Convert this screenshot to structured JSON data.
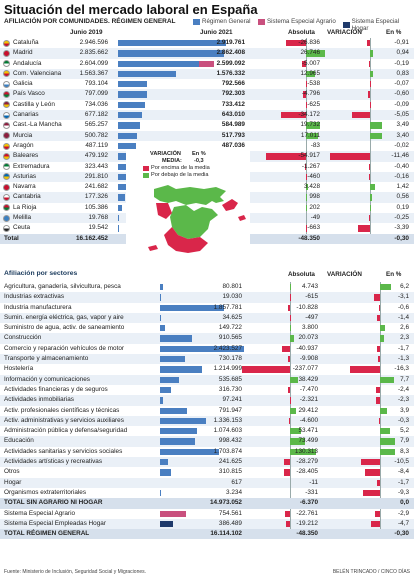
{
  "title": "Situación del mercado laboral en España",
  "subtitle": "AFILIACIÓN POR COMUNIDADES. RÉGIMEN GENERAL",
  "legend": [
    {
      "label": "Régimen General",
      "color": "#4a7fc1"
    },
    {
      "label": "Sistema Especial Agrario",
      "color": "#c9507e"
    },
    {
      "label": "Sistema Especial Hogar",
      "color": "#1f3a6b"
    }
  ],
  "colors": {
    "positive": "#5bb84a",
    "negative": "#d9264a",
    "general": "#4a7fc1",
    "agrario": "#c9507e",
    "hogar": "#1f3a6b",
    "highlight": "#1a3a5c"
  },
  "headers": {
    "jun2019": "Junio 2019",
    "jun2021": "Junio 2021",
    "absoluta": "Absoluta",
    "variacion": "VARIACIÓN",
    "pct": "En %"
  },
  "regions": [
    {
      "name": "Cataluña",
      "flag": [
        "#f2c200",
        "#c8102e"
      ],
      "v2019": "2.946.596",
      "v2021": "2.919.761",
      "gen": 2919761,
      "agr": 0,
      "hog": 0,
      "abs": "-26.836",
      "absn": -26836,
      "pct": "-0,91"
    },
    {
      "name": "Madrid",
      "flag": [
        "#c8102e",
        "#c8102e"
      ],
      "v2019": "2.835.662",
      "v2021": "2.862.408",
      "gen": 2862408,
      "agr": 0,
      "hog": 0,
      "abs": "26.746",
      "absn": 26746,
      "pct": "0,94"
    },
    {
      "name": "Andalucía",
      "flag": [
        "#007a33",
        "#ffffff"
      ],
      "v2019": "2.604.099",
      "v2021": "2.599.092",
      "gen": 2200000,
      "agr": 399092,
      "hog": 0,
      "abs": "-5.007",
      "absn": -5007,
      "pct": "-0,19"
    },
    {
      "name": "Com. Valenciana",
      "flag": [
        "#f2c200",
        "#c8102e"
      ],
      "v2019": "1.563.367",
      "v2021": "1.576.332",
      "gen": 1576332,
      "agr": 0,
      "hog": 0,
      "abs": "12.965",
      "absn": 12965,
      "pct": "0,83"
    },
    {
      "name": "Galicia",
      "flag": [
        "#ffffff",
        "#3a7fc1"
      ],
      "v2019": "793.104",
      "v2021": "792.566",
      "gen": 792566,
      "agr": 0,
      "hog": 0,
      "abs": "-538",
      "absn": -538,
      "pct": "-0,07"
    },
    {
      "name": "País Vasco",
      "flag": [
        "#c8102e",
        "#007a33"
      ],
      "v2019": "797.099",
      "v2021": "792.303",
      "gen": 792303,
      "agr": 0,
      "hog": 0,
      "abs": "-4.796",
      "absn": -4796,
      "pct": "-0,60"
    },
    {
      "name": "Castilla y León",
      "flag": [
        "#8b1e3f",
        "#f2c200"
      ],
      "v2019": "734.036",
      "v2021": "733.412",
      "gen": 733412,
      "agr": 0,
      "hog": 0,
      "abs": "-625",
      "absn": -625,
      "pct": "-0,09"
    },
    {
      "name": "Canarias",
      "flag": [
        "#ffffff",
        "#0066b3"
      ],
      "v2019": "677.182",
      "v2021": "643.010",
      "gen": 643010,
      "agr": 0,
      "hog": 0,
      "abs": "-34.172",
      "absn": -34172,
      "pct": "-5,05"
    },
    {
      "name": "Cast.-La Mancha",
      "flag": [
        "#8b1e3f",
        "#ffffff"
      ],
      "v2019": "565.257",
      "v2021": "584.989",
      "gen": 584989,
      "agr": 0,
      "hog": 0,
      "abs": "19.732",
      "absn": 19732,
      "pct": "3,49"
    },
    {
      "name": "Murcia",
      "flag": [
        "#8b1e3f",
        "#8b1e3f"
      ],
      "v2019": "500.782",
      "v2021": "517.793",
      "gen": 517793,
      "agr": 0,
      "hog": 0,
      "abs": "17.011",
      "absn": 17011,
      "pct": "3,40"
    },
    {
      "name": "Aragón",
      "flag": [
        "#f2c200",
        "#c8102e"
      ],
      "v2019": "487.119",
      "v2021": "487.036",
      "gen": 487036,
      "agr": 0,
      "hog": 0,
      "abs": "-83",
      "absn": -83,
      "pct": "-0,02"
    },
    {
      "name": "Baleares",
      "flag": [
        "#c8102e",
        "#f2c200"
      ],
      "v2019": "479.192",
      "v2021": "424.275",
      "gen": 424275,
      "agr": 0,
      "hog": 0,
      "abs": "-54.917",
      "absn": -54917,
      "pct": "-11,46"
    },
    {
      "name": "Extremadura",
      "flag": [
        "#007a33",
        "#ffffff"
      ],
      "v2019": "323.443",
      "v2021": "322.176",
      "gen": 322176,
      "agr": 0,
      "hog": 0,
      "abs": "-1.267",
      "absn": -1267,
      "pct": "-0,40"
    },
    {
      "name": "Asturias",
      "flag": [
        "#0066b3",
        "#f2c200"
      ],
      "v2019": "291.810",
      "v2021": "291.350",
      "gen": 291350,
      "agr": 0,
      "hog": 0,
      "abs": "-460",
      "absn": -460,
      "pct": "-0,16"
    },
    {
      "name": "Navarra",
      "flag": [
        "#c8102e",
        "#c8102e"
      ],
      "v2019": "241.682",
      "v2021": "245.110",
      "gen": 245110,
      "agr": 0,
      "hog": 0,
      "abs": "3.428",
      "absn": 3428,
      "pct": "1,42"
    },
    {
      "name": "Cantabria",
      "flag": [
        "#ffffff",
        "#c8102e"
      ],
      "v2019": "177.326",
      "v2021": "178.324",
      "gen": 178324,
      "agr": 0,
      "hog": 0,
      "abs": "998",
      "absn": 998,
      "pct": "0,56"
    },
    {
      "name": "La Rioja",
      "flag": [
        "#c8102e",
        "#007a33"
      ],
      "v2019": "105.386",
      "v2021": "105.588",
      "gen": 105588,
      "agr": 0,
      "hog": 0,
      "abs": "202",
      "absn": 202,
      "pct": "0,19"
    },
    {
      "name": "Melilla",
      "flag": [
        "#3a7fc1",
        "#3a7fc1"
      ],
      "v2019": "19.768",
      "v2021": "19.719",
      "gen": 19719,
      "agr": 0,
      "hog": 0,
      "abs": "-49",
      "absn": -49,
      "pct": "-0,25"
    },
    {
      "name": "Ceuta",
      "flag": [
        "#ffffff",
        "#222222"
      ],
      "v2019": "19.542",
      "v2021": "18.879",
      "gen": 18879,
      "agr": 0,
      "hog": 0,
      "abs": "-663",
      "absn": -663,
      "pct": "-3,39"
    }
  ],
  "region_total": {
    "name": "Total",
    "v2019": "16.162.452",
    "v2021": "16.114.102",
    "abs": "-48.350",
    "pct": "-0,30"
  },
  "map_legend": {
    "title": "VARIACIÓN",
    "pct_label": "En %",
    "media_label": "MEDIA:",
    "media_value": "-0,3",
    "above": "Por encima de la media",
    "below": "Por debajo de la media"
  },
  "sectors_header": "Afiliación  por sectores",
  "sectors": [
    {
      "name": "Agricultura, ganadería, silvicultura, pesca",
      "v2021": "80.801",
      "n": 80801,
      "abs": "4.743",
      "absn": 4743,
      "pct": "6,2"
    },
    {
      "name": "Industrias extractivas",
      "v2021": "19.030",
      "n": 19030,
      "abs": "-615",
      "absn": -615,
      "pct": "-3,1"
    },
    {
      "name": "Industria manufacturera",
      "v2021": "1.857.781",
      "n": 1857781,
      "abs": "-10.828",
      "absn": -10828,
      "pct": "-0,6"
    },
    {
      "name": "Sumin. energía eléctrica, gas, vapor y aire",
      "v2021": "34.625",
      "n": 34625,
      "abs": "-497",
      "absn": -497,
      "pct": "-1,4"
    },
    {
      "name": "Suministro de agua, activ. de saneamiento",
      "v2021": "149.722",
      "n": 149722,
      "abs": "3.800",
      "absn": 3800,
      "pct": "2,6"
    },
    {
      "name": "Construcción",
      "v2021": "910.565",
      "n": 910565,
      "abs": "20.073",
      "absn": 20073,
      "pct": "2,3"
    },
    {
      "name": "Comercio y reparación vehículos de motor",
      "v2021": "2.423.527",
      "n": 2423527,
      "abs": "-40.937",
      "absn": -40937,
      "pct": "-1,7"
    },
    {
      "name": "Transporte y almacenamiento",
      "v2021": "730.178",
      "n": 730178,
      "abs": "-9.908",
      "absn": -9908,
      "pct": "-1,3"
    },
    {
      "name": "Hostelería",
      "v2021": "1.214.999",
      "n": 1214999,
      "abs": "-237.077",
      "absn": -237077,
      "pct": "-16,3"
    },
    {
      "name": "Información y comunicaciones",
      "v2021": "535.685",
      "n": 535685,
      "abs": "38.429",
      "absn": 38429,
      "pct": "7,7"
    },
    {
      "name": "Actividades financieras y de seguros",
      "v2021": "316.730",
      "n": 316730,
      "abs": "-7.470",
      "absn": -7470,
      "pct": "-2,4"
    },
    {
      "name": "Actividades inmobiliarias",
      "v2021": "97.241",
      "n": 97241,
      "abs": "-2.321",
      "absn": -2321,
      "pct": "-2,3"
    },
    {
      "name": "Activ. profesionales científicas y técnicas",
      "v2021": "791.947",
      "n": 791947,
      "abs": "29.412",
      "absn": 29412,
      "pct": "3,9"
    },
    {
      "name": "Activ. administrativas y servicios auxiliares",
      "v2021": "1.336.153",
      "n": 1336153,
      "abs": "-4.600",
      "absn": -4600,
      "pct": "-0,3"
    },
    {
      "name": "Administración pública y defensa/seguridad",
      "v2021": "1.074.603",
      "n": 1074603,
      "abs": "53.471",
      "absn": 53471,
      "pct": "5,2"
    },
    {
      "name": "Educación",
      "v2021": "998.432",
      "n": 998432,
      "abs": "73.499",
      "absn": 73499,
      "pct": "7,9"
    },
    {
      "name": "Actividades sanitarias y servicios sociales",
      "v2021": "1.703.874",
      "n": 1703874,
      "abs": "130.313",
      "absn": 130313,
      "pct": "8,3"
    },
    {
      "name": "Actividades artísticas y recreativas",
      "v2021": "241.625",
      "n": 241625,
      "abs": "-28.279",
      "absn": -28279,
      "pct": "-10,5"
    },
    {
      "name": "Otros",
      "v2021": "310.815",
      "n": 310815,
      "abs": "-28.405",
      "absn": -28405,
      "pct": "-8,4"
    },
    {
      "name": "Hogar",
      "v2021": "617",
      "n": 617,
      "abs": "-11",
      "absn": -11,
      "pct": "-1,7"
    },
    {
      "name": "Organismos extraterritoriales",
      "v2021": "3.234",
      "n": 3234,
      "abs": "-331",
      "absn": -331,
      "pct": "-9,3"
    }
  ],
  "sector_total_sin": {
    "name": "TOTAL SIN AGRARIO NI HOGAR",
    "v2021": "14.973.052",
    "abs": "-6.370",
    "pct": "0,0"
  },
  "sector_extras": [
    {
      "name": "Sistema Especial Agrario",
      "v2021": "754.561",
      "n": 754561,
      "color": "#c9507e",
      "abs": "-22.761",
      "absn": -22761,
      "pct": "-2,9"
    },
    {
      "name": "Sistema Especial Empleadas Hogar",
      "v2021": "386.489",
      "n": 386489,
      "color": "#1f3a6b",
      "abs": "-19.212",
      "absn": -19212,
      "pct": "-4,7"
    }
  ],
  "sector_total": {
    "name": "TOTAL RÉGIMEN GENERAL",
    "v2021": "16.114.102",
    "abs": "-48.350",
    "pct": "-0,30"
  },
  "source": "Fuente: Ministerio de Inclusión, Seguridad Social y Migraciones.",
  "credit": "BELÉN TRINCADO / CINCO DÍAS",
  "chart_data": [
    {
      "type": "bar",
      "title": "AFILIACIÓN POR COMUNIDADES. RÉGIMEN GENERAL",
      "categories": [
        "Cataluña",
        "Madrid",
        "Andalucía",
        "Com. Valenciana",
        "Galicia",
        "País Vasco",
        "Castilla y León",
        "Canarias",
        "Cast.-La Mancha",
        "Murcia",
        "Aragón",
        "Baleares",
        "Extremadura",
        "Asturias",
        "Navarra",
        "Cantabria",
        "La Rioja",
        "Melilla",
        "Ceuta"
      ],
      "series": [
        {
          "name": "Junio 2019",
          "values": [
            2946596,
            2835662,
            2604099,
            1563367,
            793104,
            797099,
            734036,
            677182,
            565257,
            500782,
            487119,
            479192,
            323443,
            291810,
            241682,
            177326,
            105386,
            19768,
            19542
          ]
        },
        {
          "name": "Junio 2021",
          "values": [
            2919761,
            2862408,
            2599092,
            1576332,
            792566,
            792303,
            733412,
            643010,
            584989,
            517793,
            487036,
            424275,
            322176,
            291350,
            245110,
            178324,
            105588,
            19719,
            18879
          ]
        },
        {
          "name": "Absoluta",
          "values": [
            -26836,
            26746,
            -5007,
            12965,
            -538,
            -4796,
            -625,
            -34172,
            19732,
            17011,
            -83,
            -54917,
            -1267,
            -460,
            3428,
            998,
            202,
            -49,
            -663
          ]
        },
        {
          "name": "En %",
          "values": [
            -0.91,
            0.94,
            -0.19,
            0.83,
            -0.07,
            -0.6,
            -0.09,
            -5.05,
            3.49,
            3.4,
            -0.02,
            -11.46,
            -0.4,
            -0.16,
            1.42,
            0.56,
            0.19,
            -0.25,
            -3.39
          ]
        }
      ]
    },
    {
      "type": "bar",
      "title": "Afiliación por sectores",
      "categories": [
        "Agricultura, ganadería, silvicultura, pesca",
        "Industrias extractivas",
        "Industria manufacturera",
        "Sumin. energía eléctrica, gas, vapor y aire",
        "Suministro de agua, activ. de saneamiento",
        "Construcción",
        "Comercio y reparación vehículos de motor",
        "Transporte y almacenamiento",
        "Hostelería",
        "Información y comunicaciones",
        "Actividades financieras y de seguros",
        "Actividades inmobiliarias",
        "Activ. profesionales científicas y técnicas",
        "Activ. administrativas y servicios auxiliares",
        "Administración pública y defensa/seguridad",
        "Educación",
        "Actividades sanitarias y servicios sociales",
        "Actividades artísticas y recreativas",
        "Otros",
        "Hogar",
        "Organismos extraterritoriales"
      ],
      "series": [
        {
          "name": "Junio 2021",
          "values": [
            80801,
            19030,
            1857781,
            34625,
            149722,
            910565,
            2423527,
            730178,
            1214999,
            535685,
            316730,
            97241,
            791947,
            1336153,
            1074603,
            998432,
            1703874,
            241625,
            310815,
            617,
            3234
          ]
        },
        {
          "name": "Absoluta",
          "values": [
            4743,
            -615,
            -10828,
            -497,
            3800,
            20073,
            -40937,
            -9908,
            -237077,
            38429,
            -7470,
            -2321,
            29412,
            -4600,
            53471,
            73499,
            130313,
            -28279,
            -28405,
            -11,
            -331
          ]
        },
        {
          "name": "En %",
          "values": [
            6.2,
            -3.1,
            -0.6,
            -1.4,
            2.6,
            2.3,
            -1.7,
            -1.3,
            -16.3,
            7.7,
            -2.4,
            -2.3,
            3.9,
            -0.3,
            5.2,
            7.9,
            8.3,
            -10.5,
            -8.4,
            -1.7,
            -9.3
          ]
        }
      ]
    }
  ]
}
